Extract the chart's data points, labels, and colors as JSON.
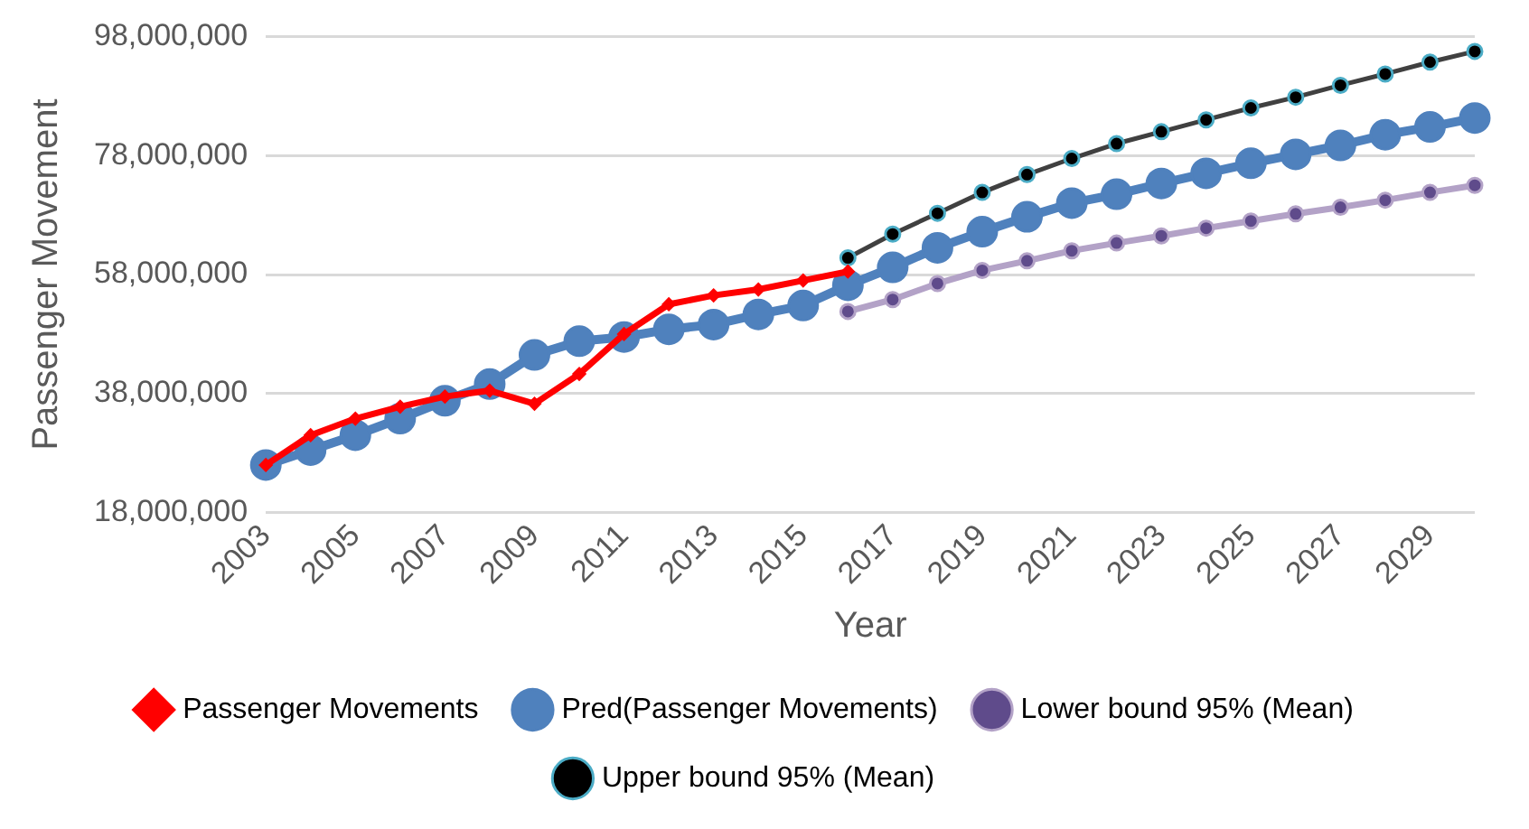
{
  "chart_data": {
    "type": "line",
    "xlabel": "Year",
    "ylabel": "Passenger Movement",
    "categories": [
      "2003",
      null,
      "2005",
      null,
      "2007",
      null,
      "2009",
      null,
      "2011",
      null,
      "2013",
      null,
      "2015",
      null,
      "2017",
      null,
      "2019",
      null,
      "2021",
      null,
      "2023",
      null,
      "2025",
      null,
      "2027",
      null,
      "2029",
      null
    ],
    "ylim": [
      18000000,
      98000000
    ],
    "yticks": [
      {
        "value": 18000000,
        "label": "18,000,000"
      },
      {
        "value": 38000000,
        "label": "38,000,000"
      },
      {
        "value": 58000000,
        "label": "58,000,000"
      },
      {
        "value": 78000000,
        "label": "78,000,000"
      },
      {
        "value": 98000000,
        "label": "98,000,000"
      }
    ],
    "grid": "y",
    "legend": "bottom",
    "line_style": "solid",
    "series": [
      {
        "name": "Passenger Movements",
        "color": "#ff0000",
        "marker": "diamond",
        "values": [
          26000000,
          31000000,
          33800000,
          35800000,
          37500000,
          38500000,
          36300000,
          41300000,
          48000000,
          53000000,
          54500000,
          55500000,
          57000000,
          58500000,
          null,
          null,
          null,
          null,
          null,
          null,
          null,
          null,
          null,
          null,
          null,
          null,
          null,
          null
        ]
      },
      {
        "name": "Pred(Passenger Movements)",
        "color": "#4f81bd",
        "marker": "circle",
        "values": [
          26000000,
          28500000,
          31000000,
          33800000,
          36800000,
          39600000,
          44500000,
          46800000,
          47500000,
          48800000,
          49600000,
          51300000,
          52800000,
          56200000,
          59200000,
          62500000,
          65200000,
          67700000,
          70000000,
          71500000,
          73300000,
          75000000,
          76700000,
          78200000,
          79700000,
          81500000,
          82800000,
          84300000
        ]
      },
      {
        "name": "Lower bound 95% (Mean)",
        "color": "#b3a2c7",
        "marker": "circle",
        "values": [
          null,
          null,
          null,
          null,
          null,
          null,
          null,
          null,
          null,
          null,
          null,
          null,
          null,
          51800000,
          53800000,
          56500000,
          58700000,
          60300000,
          62000000,
          63300000,
          64500000,
          65800000,
          67000000,
          68200000,
          69300000,
          70500000,
          71800000,
          73000000
        ]
      },
      {
        "name": "Upper bound 95% (Mean)",
        "color": "#404040",
        "marker": "circle",
        "values": [
          null,
          null,
          null,
          null,
          null,
          null,
          null,
          null,
          null,
          null,
          null,
          null,
          null,
          60800000,
          64800000,
          68300000,
          71800000,
          74800000,
          77500000,
          80000000,
          82000000,
          84000000,
          86000000,
          87800000,
          89800000,
          91700000,
          93700000,
          95500000
        ]
      }
    ]
  }
}
